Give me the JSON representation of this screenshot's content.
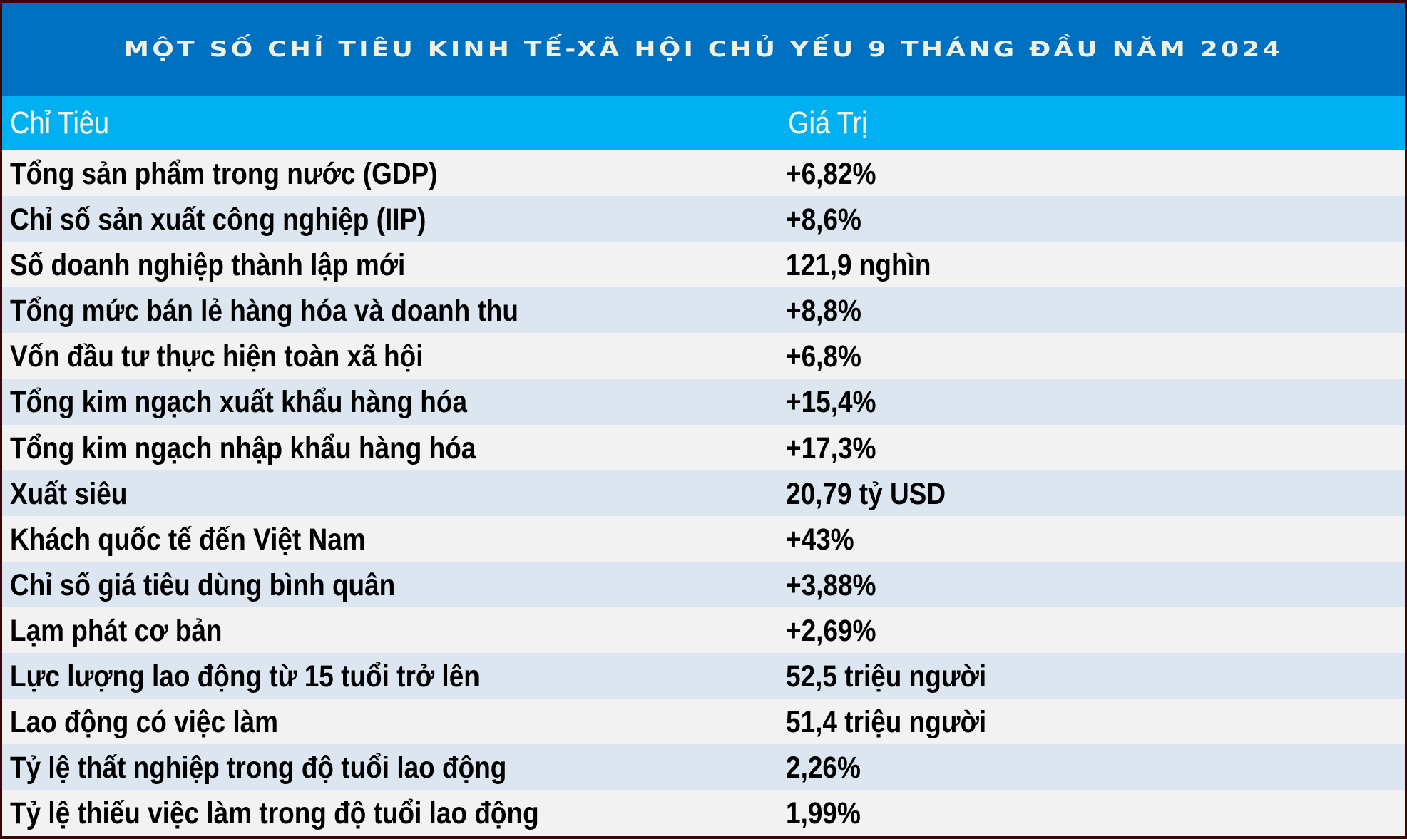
{
  "title": "MỘT SỐ CHỈ TIÊU KINH TẾ-XÃ HỘI CHỦ YẾU 9 THÁNG ĐẦU NĂM 2024",
  "colors": {
    "title_band": "#0070C0",
    "header_band": "#00B0F0",
    "header_text": "#EEF1DF",
    "row_light": "#F2F2F2",
    "row_alt": "#DCE6F1",
    "text": "#000000",
    "frame_border": "#3A0606"
  },
  "table": {
    "headers": {
      "indicator": "Chỉ Tiêu",
      "value": "Giá Trị"
    },
    "rows": [
      {
        "indicator": "Tổng sản phẩm trong nước (GDP)",
        "value": "+6,82%"
      },
      {
        "indicator": "Chỉ số sản xuất công nghiệp (IIP)",
        "value": "+8,6%"
      },
      {
        "indicator": "Số doanh nghiệp thành lập mới",
        "value": "121,9 nghìn"
      },
      {
        "indicator": "Tổng mức bán lẻ hàng hóa và doanh thu",
        "value": "+8,8%"
      },
      {
        "indicator": "Vốn đầu tư thực hiện toàn xã hội",
        "value": "+6,8%"
      },
      {
        "indicator": "Tổng kim ngạch xuất khẩu hàng hóa",
        "value": "+15,4%"
      },
      {
        "indicator": "Tổng kim ngạch nhập khẩu hàng hóa",
        "value": "+17,3%"
      },
      {
        "indicator": "Xuất siêu",
        "value": "20,79 tỷ USD"
      },
      {
        "indicator": "Khách quốc tế đến Việt Nam",
        "value": "+43%"
      },
      {
        "indicator": "Chỉ số giá tiêu dùng bình quân",
        "value": "+3,88%"
      },
      {
        "indicator": "Lạm phát cơ bản",
        "value": "+2,69%"
      },
      {
        "indicator": "Lực lượng lao động từ 15 tuổi trở lên",
        "value": "52,5 triệu người"
      },
      {
        "indicator": "Lao động có việc làm",
        "value": "51,4 triệu người"
      },
      {
        "indicator": "Tỷ lệ thất nghiệp trong độ tuổi lao động",
        "value": "2,26%"
      },
      {
        "indicator": "Tỷ lệ thiếu việc làm trong độ tuổi lao động",
        "value": "1,99%"
      }
    ]
  }
}
